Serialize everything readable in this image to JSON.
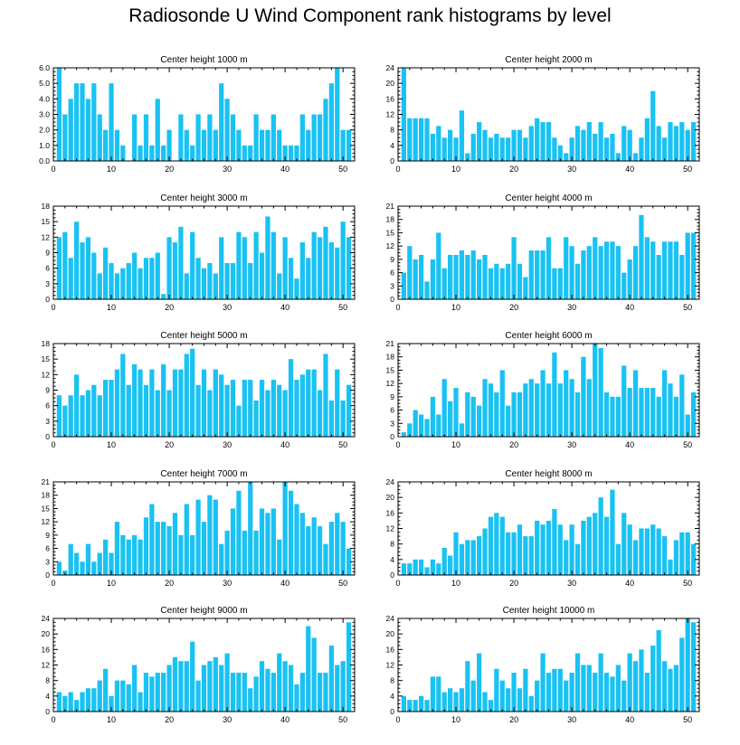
{
  "title": "Radiosonde U Wind Component rank histograms by level",
  "colors": {
    "bar": "#19C2F2",
    "axis": "#000000",
    "background": "#ffffff"
  },
  "chart_data": [
    {
      "type": "bar",
      "title": "Center height 1000 m",
      "xlabel": "",
      "ylabel": "",
      "xlim": [
        0,
        52
      ],
      "ylim": [
        0,
        6
      ],
      "xticks": [
        0,
        10,
        20,
        30,
        40,
        50
      ],
      "yticks": [
        0,
        1,
        2,
        3,
        4,
        5,
        6
      ],
      "ytick_labels": [
        "0.0",
        "1.0",
        "2.0",
        "3.0",
        "4.0",
        "5.0",
        "6.0"
      ],
      "x": [
        1,
        2,
        3,
        4,
        5,
        6,
        7,
        8,
        9,
        10,
        11,
        12,
        13,
        14,
        15,
        16,
        17,
        18,
        19,
        20,
        21,
        22,
        23,
        24,
        25,
        26,
        27,
        28,
        29,
        30,
        31,
        32,
        33,
        34,
        35,
        36,
        37,
        38,
        39,
        40,
        41,
        42,
        43,
        44,
        45,
        46,
        47,
        48,
        49,
        50,
        51
      ],
      "values": [
        6,
        3,
        4,
        5,
        5,
        4,
        5,
        3,
        2,
        5,
        2,
        1,
        0,
        3,
        1,
        3,
        1,
        4,
        1,
        2,
        0,
        3,
        2,
        1,
        3,
        2,
        3,
        2,
        5,
        4,
        3,
        2,
        1,
        1,
        3,
        2,
        2,
        3,
        2,
        1,
        1,
        1,
        3,
        2,
        3,
        3,
        4,
        5,
        6,
        2,
        2
      ]
    },
    {
      "type": "bar",
      "title": "Center height 2000 m",
      "xlabel": "",
      "ylabel": "",
      "xlim": [
        0,
        52
      ],
      "ylim": [
        0,
        24
      ],
      "xticks": [
        0,
        10,
        20,
        30,
        40,
        50
      ],
      "yticks": [
        0,
        4,
        8,
        12,
        16,
        20,
        24
      ],
      "ytick_labels": [
        "0",
        "4",
        "8",
        "12",
        "16",
        "20",
        "24"
      ],
      "x": [
        1,
        2,
        3,
        4,
        5,
        6,
        7,
        8,
        9,
        10,
        11,
        12,
        13,
        14,
        15,
        16,
        17,
        18,
        19,
        20,
        21,
        22,
        23,
        24,
        25,
        26,
        27,
        28,
        29,
        30,
        31,
        32,
        33,
        34,
        35,
        36,
        37,
        38,
        39,
        40,
        41,
        42,
        43,
        44,
        45,
        46,
        47,
        48,
        49,
        50,
        51
      ],
      "values": [
        24,
        11,
        11,
        11,
        11,
        7,
        9,
        6,
        8,
        6,
        13,
        2,
        7,
        10,
        8,
        6,
        7,
        6,
        6,
        8,
        8,
        6,
        9,
        11,
        10,
        10,
        6,
        4,
        2,
        6,
        9,
        8,
        10,
        7,
        10,
        6,
        7,
        2,
        9,
        8,
        2,
        6,
        11,
        18,
        9,
        6,
        10,
        9,
        10,
        8,
        10
      ]
    },
    {
      "type": "bar",
      "title": "Center height 3000 m",
      "xlabel": "",
      "ylabel": "",
      "xlim": [
        0,
        52
      ],
      "ylim": [
        0,
        18
      ],
      "xticks": [
        0,
        10,
        20,
        30,
        40,
        50
      ],
      "yticks": [
        0,
        3,
        6,
        9,
        12,
        15,
        18
      ],
      "ytick_labels": [
        "0",
        "3",
        "6",
        "9",
        "12",
        "15",
        "18"
      ],
      "x": [
        1,
        2,
        3,
        4,
        5,
        6,
        7,
        8,
        9,
        10,
        11,
        12,
        13,
        14,
        15,
        16,
        17,
        18,
        19,
        20,
        21,
        22,
        23,
        24,
        25,
        26,
        27,
        28,
        29,
        30,
        31,
        32,
        33,
        34,
        35,
        36,
        37,
        38,
        39,
        40,
        41,
        42,
        43,
        44,
        45,
        46,
        47,
        48,
        49,
        50,
        51
      ],
      "values": [
        12,
        13,
        8,
        15,
        11,
        12,
        9,
        5,
        10,
        7,
        5,
        6,
        7,
        9,
        6,
        8,
        8,
        9,
        1,
        12,
        11,
        14,
        5,
        13,
        8,
        6,
        7,
        5,
        12,
        7,
        7,
        13,
        12,
        7,
        13,
        9,
        16,
        13,
        5,
        12,
        8,
        4,
        11,
        8,
        13,
        12,
        14,
        11,
        10,
        15,
        12
      ]
    },
    {
      "type": "bar",
      "title": "Center height 4000 m",
      "xlabel": "",
      "ylabel": "",
      "xlim": [
        0,
        52
      ],
      "ylim": [
        0,
        21
      ],
      "xticks": [
        0,
        10,
        20,
        30,
        40,
        50
      ],
      "yticks": [
        0,
        3,
        6,
        9,
        12,
        15,
        18,
        21
      ],
      "ytick_labels": [
        "0",
        "3",
        "6",
        "9",
        "12",
        "15",
        "18",
        "21"
      ],
      "x": [
        1,
        2,
        3,
        4,
        5,
        6,
        7,
        8,
        9,
        10,
        11,
        12,
        13,
        14,
        15,
        16,
        17,
        18,
        19,
        20,
        21,
        22,
        23,
        24,
        25,
        26,
        27,
        28,
        29,
        30,
        31,
        32,
        33,
        34,
        35,
        36,
        37,
        38,
        39,
        40,
        41,
        42,
        43,
        44,
        45,
        46,
        47,
        48,
        49,
        50,
        51
      ],
      "values": [
        6,
        12,
        9,
        10,
        4,
        9,
        15,
        7,
        10,
        10,
        11,
        10,
        11,
        9,
        10,
        7,
        8,
        7,
        8,
        14,
        8,
        5,
        11,
        11,
        11,
        14,
        7,
        7,
        14,
        12,
        8,
        11,
        12,
        14,
        12,
        13,
        13,
        12,
        6,
        9,
        12,
        19,
        14,
        13,
        10,
        13,
        13,
        13,
        10,
        15,
        15
      ]
    },
    {
      "type": "bar",
      "title": "Center height 5000 m",
      "xlabel": "",
      "ylabel": "",
      "xlim": [
        0,
        52
      ],
      "ylim": [
        0,
        18
      ],
      "xticks": [
        0,
        10,
        20,
        30,
        40,
        50
      ],
      "yticks": [
        0,
        3,
        6,
        9,
        12,
        15,
        18
      ],
      "ytick_labels": [
        "0",
        "3",
        "6",
        "9",
        "12",
        "15",
        "18"
      ],
      "x": [
        1,
        2,
        3,
        4,
        5,
        6,
        7,
        8,
        9,
        10,
        11,
        12,
        13,
        14,
        15,
        16,
        17,
        18,
        19,
        20,
        21,
        22,
        23,
        24,
        25,
        26,
        27,
        28,
        29,
        30,
        31,
        32,
        33,
        34,
        35,
        36,
        37,
        38,
        39,
        40,
        41,
        42,
        43,
        44,
        45,
        46,
        47,
        48,
        49,
        50,
        51
      ],
      "values": [
        8,
        6,
        8,
        12,
        8,
        9,
        10,
        8,
        11,
        11,
        13,
        16,
        10,
        14,
        13,
        10,
        13,
        9,
        14,
        9,
        13,
        13,
        16,
        17,
        10,
        13,
        9,
        13,
        12,
        10,
        11,
        6,
        11,
        11,
        7,
        11,
        9,
        11,
        10,
        9,
        15,
        11,
        12,
        13,
        13,
        9,
        16,
        7,
        13,
        7,
        10
      ]
    },
    {
      "type": "bar",
      "title": "Center height 6000 m",
      "xlabel": "",
      "ylabel": "",
      "xlim": [
        0,
        52
      ],
      "ylim": [
        0,
        21
      ],
      "xticks": [
        0,
        10,
        20,
        30,
        40,
        50
      ],
      "yticks": [
        0,
        3,
        6,
        9,
        12,
        15,
        18,
        21
      ],
      "ytick_labels": [
        "0",
        "3",
        "6",
        "9",
        "12",
        "15",
        "18",
        "21"
      ],
      "x": [
        1,
        2,
        3,
        4,
        5,
        6,
        7,
        8,
        9,
        10,
        11,
        12,
        13,
        14,
        15,
        16,
        17,
        18,
        19,
        20,
        21,
        22,
        23,
        24,
        25,
        26,
        27,
        28,
        29,
        30,
        31,
        32,
        33,
        34,
        35,
        36,
        37,
        38,
        39,
        40,
        41,
        42,
        43,
        44,
        45,
        46,
        47,
        48,
        49,
        50,
        51
      ],
      "values": [
        1,
        3,
        6,
        5,
        4,
        9,
        5,
        13,
        8,
        11,
        3,
        10,
        9,
        7,
        13,
        12,
        10,
        15,
        7,
        10,
        10,
        12,
        13,
        12,
        15,
        12,
        19,
        12,
        15,
        13,
        10,
        18,
        13,
        21,
        20,
        10,
        9,
        9,
        16,
        11,
        15,
        11,
        11,
        11,
        9,
        15,
        12,
        9,
        14,
        5,
        10
      ]
    },
    {
      "type": "bar",
      "title": "Center height 7000 m",
      "xlabel": "",
      "ylabel": "",
      "xlim": [
        0,
        52
      ],
      "ylim": [
        0,
        21
      ],
      "xticks": [
        0,
        10,
        20,
        30,
        40,
        50
      ],
      "yticks": [
        0,
        3,
        6,
        9,
        12,
        15,
        18,
        21
      ],
      "ytick_labels": [
        "0",
        "3",
        "6",
        "9",
        "12",
        "15",
        "18",
        "21"
      ],
      "x": [
        1,
        2,
        3,
        4,
        5,
        6,
        7,
        8,
        9,
        10,
        11,
        12,
        13,
        14,
        15,
        16,
        17,
        18,
        19,
        20,
        21,
        22,
        23,
        24,
        25,
        26,
        27,
        28,
        29,
        30,
        31,
        32,
        33,
        34,
        35,
        36,
        37,
        38,
        39,
        40,
        41,
        42,
        43,
        44,
        45,
        46,
        47,
        48,
        49,
        50,
        51
      ],
      "values": [
        3,
        1,
        7,
        5,
        3,
        7,
        3,
        5,
        8,
        5,
        12,
        9,
        8,
        9,
        8,
        13,
        16,
        12,
        12,
        11,
        14,
        9,
        16,
        9,
        17,
        12,
        18,
        17,
        7,
        10,
        15,
        19,
        10,
        21,
        10,
        15,
        14,
        15,
        8,
        21,
        19,
        16,
        14,
        11,
        13,
        11,
        7,
        12,
        14,
        12,
        6
      ]
    },
    {
      "type": "bar",
      "title": "Center height 8000 m",
      "xlabel": "",
      "ylabel": "",
      "xlim": [
        0,
        52
      ],
      "ylim": [
        0,
        24
      ],
      "xticks": [
        0,
        10,
        20,
        30,
        40,
        50
      ],
      "yticks": [
        0,
        4,
        8,
        12,
        16,
        20,
        24
      ],
      "ytick_labels": [
        "0",
        "4",
        "8",
        "12",
        "16",
        "20",
        "24"
      ],
      "x": [
        1,
        2,
        3,
        4,
        5,
        6,
        7,
        8,
        9,
        10,
        11,
        12,
        13,
        14,
        15,
        16,
        17,
        18,
        19,
        20,
        21,
        22,
        23,
        24,
        25,
        26,
        27,
        28,
        29,
        30,
        31,
        32,
        33,
        34,
        35,
        36,
        37,
        38,
        39,
        40,
        41,
        42,
        43,
        44,
        45,
        46,
        47,
        48,
        49,
        50,
        51
      ],
      "values": [
        3,
        3,
        4,
        4,
        2,
        4,
        3,
        7,
        5,
        11,
        8,
        9,
        9,
        10,
        12,
        15,
        16,
        15,
        11,
        11,
        13,
        10,
        10,
        14,
        13,
        14,
        17,
        13,
        9,
        13,
        8,
        14,
        15,
        16,
        20,
        15,
        22,
        8,
        16,
        13,
        9,
        12,
        12,
        13,
        12,
        10,
        4,
        9,
        11,
        11,
        8
      ]
    },
    {
      "type": "bar",
      "title": "Center height 9000 m",
      "xlabel": "",
      "ylabel": "",
      "xlim": [
        0,
        52
      ],
      "ylim": [
        0,
        24
      ],
      "xticks": [
        0,
        10,
        20,
        30,
        40,
        50
      ],
      "yticks": [
        0,
        4,
        8,
        12,
        16,
        20,
        24
      ],
      "ytick_labels": [
        "0",
        "4",
        "8",
        "12",
        "16",
        "20",
        "24"
      ],
      "x": [
        1,
        2,
        3,
        4,
        5,
        6,
        7,
        8,
        9,
        10,
        11,
        12,
        13,
        14,
        15,
        16,
        17,
        18,
        19,
        20,
        21,
        22,
        23,
        24,
        25,
        26,
        27,
        28,
        29,
        30,
        31,
        32,
        33,
        34,
        35,
        36,
        37,
        38,
        39,
        40,
        41,
        42,
        43,
        44,
        45,
        46,
        47,
        48,
        49,
        50,
        51
      ],
      "values": [
        5,
        4,
        5,
        3,
        5,
        6,
        6,
        8,
        11,
        4,
        8,
        8,
        7,
        12,
        5,
        10,
        9,
        10,
        10,
        12,
        14,
        13,
        13,
        18,
        8,
        12,
        13,
        14,
        12,
        15,
        10,
        10,
        10,
        6,
        9,
        13,
        11,
        10,
        15,
        13,
        12,
        7,
        10,
        22,
        19,
        10,
        10,
        17,
        12,
        13,
        23
      ]
    },
    {
      "type": "bar",
      "title": "Center height 10000 m",
      "xlabel": "",
      "ylabel": "",
      "xlim": [
        0,
        52
      ],
      "ylim": [
        0,
        24
      ],
      "xticks": [
        0,
        10,
        20,
        30,
        40,
        50
      ],
      "yticks": [
        0,
        4,
        8,
        12,
        16,
        20,
        24
      ],
      "ytick_labels": [
        "0",
        "4",
        "8",
        "12",
        "16",
        "20",
        "24"
      ],
      "x": [
        1,
        2,
        3,
        4,
        5,
        6,
        7,
        8,
        9,
        10,
        11,
        12,
        13,
        14,
        15,
        16,
        17,
        18,
        19,
        20,
        21,
        22,
        23,
        24,
        25,
        26,
        27,
        28,
        29,
        30,
        31,
        32,
        33,
        34,
        35,
        36,
        37,
        38,
        39,
        40,
        41,
        42,
        43,
        44,
        45,
        46,
        47,
        48,
        49,
        50,
        51
      ],
      "values": [
        4,
        3,
        3,
        4,
        3,
        9,
        9,
        5,
        6,
        5,
        6,
        13,
        8,
        15,
        5,
        3,
        11,
        8,
        6,
        10,
        6,
        11,
        4,
        8,
        15,
        10,
        11,
        11,
        8,
        10,
        15,
        12,
        12,
        10,
        15,
        10,
        9,
        12,
        8,
        15,
        13,
        16,
        10,
        17,
        21,
        13,
        11,
        12,
        19,
        24,
        23
      ]
    }
  ]
}
